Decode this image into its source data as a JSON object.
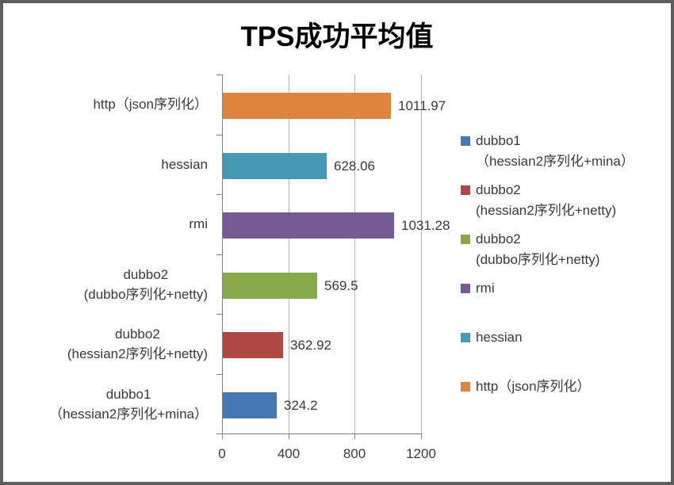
{
  "chart_data": {
    "type": "bar",
    "orientation": "horizontal",
    "title": "TPS成功平均值",
    "xlabel": "",
    "ylabel": "",
    "xlim": [
      0,
      1200
    ],
    "x_ticks": [
      "0",
      "400",
      "800",
      "1200"
    ],
    "grid": true,
    "legend_position": "right",
    "bars": [
      {
        "category_lines": [
          "http（json序列化）"
        ],
        "value": 1011.97,
        "value_label": "1011.97",
        "color": "#dc8540",
        "series": "http（json序列化）"
      },
      {
        "category_lines": [
          "hessian"
        ],
        "value": 628.06,
        "value_label": "628.06",
        "color": "#4599b2",
        "series": "hessian"
      },
      {
        "category_lines": [
          "rmi"
        ],
        "value": 1031.28,
        "value_label": "1031.28",
        "color": "#745b94",
        "series": "rmi"
      },
      {
        "category_lines": [
          "dubbo2",
          "(dubbo序列化+netty)"
        ],
        "value": 569.5,
        "value_label": "569.5",
        "color": "#8ba94c",
        "series": "dubbo2 (dubbo序列化+netty)"
      },
      {
        "category_lines": [
          "dubbo2",
          "(hessian2序列化+netty)"
        ],
        "value": 362.92,
        "value_label": "362.92",
        "color": "#af4845",
        "series": "dubbo2 (hessian2序列化+netty)"
      },
      {
        "category_lines": [
          "dubbo1",
          "（hessian2序列化+mina）"
        ],
        "value": 324.2,
        "value_label": "324.2",
        "color": "#4878b2",
        "series": "dubbo1（hessian2序列化+mina）"
      }
    ],
    "legend": [
      {
        "lines": [
          "dubbo1",
          "（hessian2序列化+mina）"
        ],
        "color": "#4878b2"
      },
      {
        "lines": [
          "dubbo2",
          "(hessian2序列化+netty)"
        ],
        "color": "#af4845"
      },
      {
        "lines": [
          "dubbo2",
          "(dubbo序列化+netty)"
        ],
        "color": "#8ba94c"
      },
      {
        "lines": [
          "rmi"
        ],
        "color": "#745b94"
      },
      {
        "lines": [
          "hessian"
        ],
        "color": "#4599b2"
      },
      {
        "lines": [
          "http（json序列化）"
        ],
        "color": "#dc8540"
      }
    ],
    "colors": {
      "axis": "#808080",
      "gridline": "#b3b3b3",
      "text": "#3a3a3a",
      "title": "#000000",
      "frame_border": "#5e5e5e",
      "background": "#ffffff"
    }
  }
}
